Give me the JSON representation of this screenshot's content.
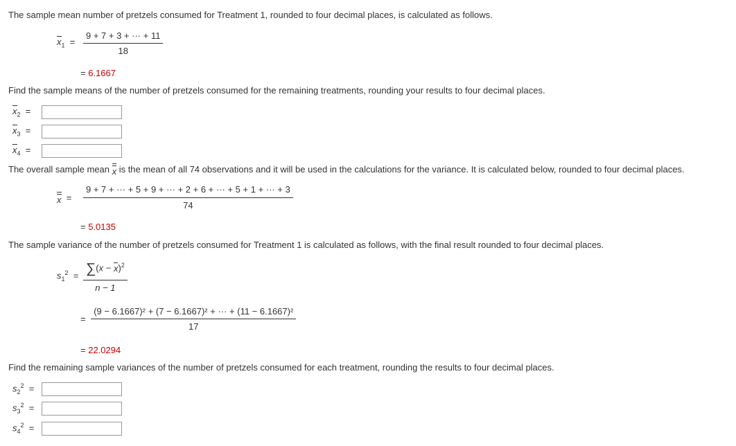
{
  "p1": "The sample mean number of pretzels consumed for Treatment 1, rounded to four decimal places, is calculated as follows.",
  "eq1": {
    "lhs_var": "x",
    "lhs_sub": "1",
    "num": "9 + 7 + 3 + ··· + 11",
    "den": "18",
    "result": "6.1667"
  },
  "p2": "Find the sample means of the number of pretzels consumed for the remaining treatments, rounding your results to four decimal places.",
  "inputs_means": [
    {
      "var": "x",
      "sub": "2"
    },
    {
      "var": "x",
      "sub": "3"
    },
    {
      "var": "x",
      "sub": "4"
    }
  ],
  "p3_a": "The overall sample mean ",
  "p3_b": " is the mean of all 74 observations and it will be used in the calculations for the variance. It is calculated below, rounded to four decimal places.",
  "eq2": {
    "num": "9 + 7 + ··· + 5 + 9 + ··· + 2 + 6 + ··· + 5 + 1 + ··· + 3",
    "den": "74",
    "result": "5.0135"
  },
  "p4": "The sample variance of the number of pretzels consumed for Treatment 1 is calculated as follows, with the final result rounded to four decimal places.",
  "eq3": {
    "lhs_var": "s",
    "lhs_sub": "1",
    "lhs_sup": "2",
    "sum_inner_a": "x",
    "sum_inner_b": "x",
    "den1": "n − 1",
    "num2_a": "(9 − ",
    "mean": "6.1667",
    "num2_b": ")",
    "plus": " + (7 − ",
    "num2_c": ")² + ··· + (11 − ",
    "num2_d": ")²",
    "num2_full": "(9 − 6.1667)² + (7 − 6.1667)² + ··· + (11 − 6.1667)²",
    "den2": "17",
    "result": "22.0294"
  },
  "p5": "Find the remaining sample variances of the number of pretzels consumed for each treatment, rounding the results to four decimal places.",
  "inputs_vars": [
    {
      "var": "s",
      "sub": "2",
      "sup": "2"
    },
    {
      "var": "s",
      "sub": "3",
      "sup": "2"
    },
    {
      "var": "s",
      "sub": "4",
      "sup": "2"
    }
  ],
  "eqsym": "="
}
